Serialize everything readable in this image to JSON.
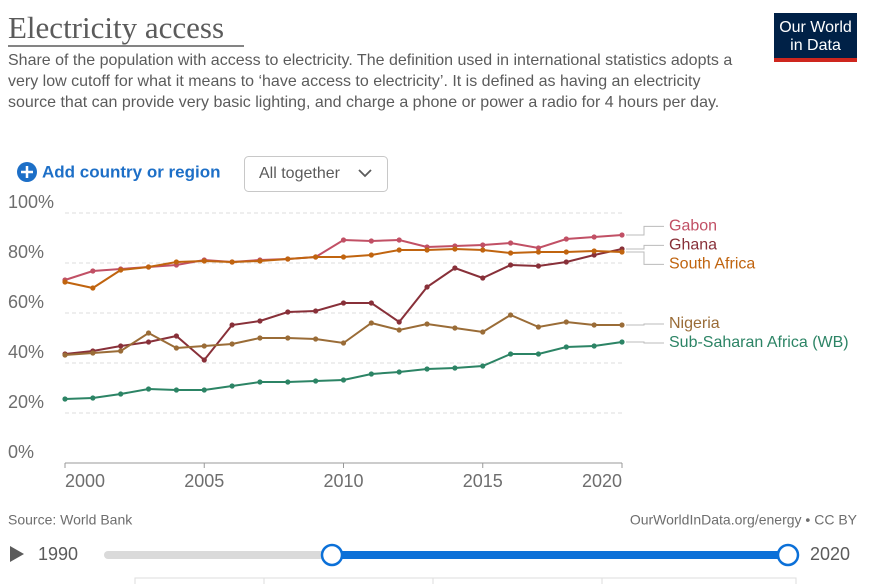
{
  "header": {
    "title": "Electricity access",
    "subtitle": "Share of the population with access to electricity. The definition used in international statistics adopts a very low cutoff for what it means to ‘have access to electricity’. It is defined as having an electricity source that can provide very basic lighting, and charge a phone or power a radio for 4 hours per day.",
    "logo": [
      "Our World",
      "in Data"
    ]
  },
  "controls": {
    "add_button": "Add country or region",
    "dropdown": "All together"
  },
  "chart_data": {
    "type": "line",
    "x": [
      2000,
      2001,
      2002,
      2003,
      2004,
      2005,
      2006,
      2007,
      2008,
      2009,
      2010,
      2011,
      2012,
      2013,
      2014,
      2015,
      2016,
      2017,
      2018,
      2019,
      2020
    ],
    "xlim": [
      2000,
      2020
    ],
    "xticks": [
      2000,
      2005,
      2010,
      2015,
      2020
    ],
    "ylim": [
      0,
      100
    ],
    "yticks": [
      {
        "value": 0,
        "label": "0%"
      },
      {
        "value": 20,
        "label": "20%"
      },
      {
        "value": 40,
        "label": "40%"
      },
      {
        "value": 60,
        "label": "60%"
      },
      {
        "value": 80,
        "label": "80%"
      },
      {
        "value": 100,
        "label": "100%"
      }
    ],
    "grid": true,
    "series": [
      {
        "name": "Gabon",
        "color": "#c15065",
        "values": [
          73.2,
          76.8,
          77.6,
          78.4,
          79.2,
          81.2,
          80.4,
          81.2,
          81.6,
          82.4,
          89.2,
          88.8,
          89.2,
          86.4,
          86.8,
          87.2,
          88,
          86,
          89.6,
          90.4,
          91.2
        ]
      },
      {
        "name": "Ghana",
        "color": "#883039",
        "values": [
          43.6,
          44.8,
          46.8,
          48.4,
          50.8,
          41.2,
          55.2,
          56.8,
          60.4,
          60.8,
          64,
          64,
          56.4,
          70.4,
          78,
          74,
          79.2,
          78.8,
          80.4,
          83.2,
          85.6
        ]
      },
      {
        "name": "South Africa",
        "color": "#c0640f",
        "values": [
          72.4,
          70,
          77.2,
          78.4,
          80.4,
          80.8,
          80.4,
          80.8,
          81.6,
          82.4,
          82.4,
          83.2,
          85.2,
          85.2,
          85.6,
          85.2,
          84,
          84.4,
          84.4,
          84.8,
          84.4
        ]
      },
      {
        "name": "Nigeria",
        "color": "#9a6c37",
        "values": [
          43.2,
          44,
          44.8,
          52,
          46,
          46.8,
          47.6,
          50,
          50,
          49.6,
          48,
          56,
          53.2,
          55.6,
          54,
          52.4,
          59.2,
          54.4,
          56.4,
          55.2,
          55.2
        ]
      },
      {
        "name": "Sub-Saharan Africa (WB)",
        "color": "#2c8465",
        "values": [
          25.6,
          26,
          27.6,
          29.6,
          29.2,
          29.2,
          30.8,
          32.4,
          32.4,
          32.8,
          33.2,
          35.6,
          36.4,
          37.6,
          38,
          38.8,
          43.6,
          43.6,
          46.4,
          46.8,
          48.4
        ]
      }
    ]
  },
  "footer": {
    "source": "Source: World Bank",
    "link": "OurWorldInData.org/energy • CC BY"
  },
  "timeline": {
    "start": 1990,
    "end": 2020,
    "selected": [
      2000,
      2020
    ]
  }
}
